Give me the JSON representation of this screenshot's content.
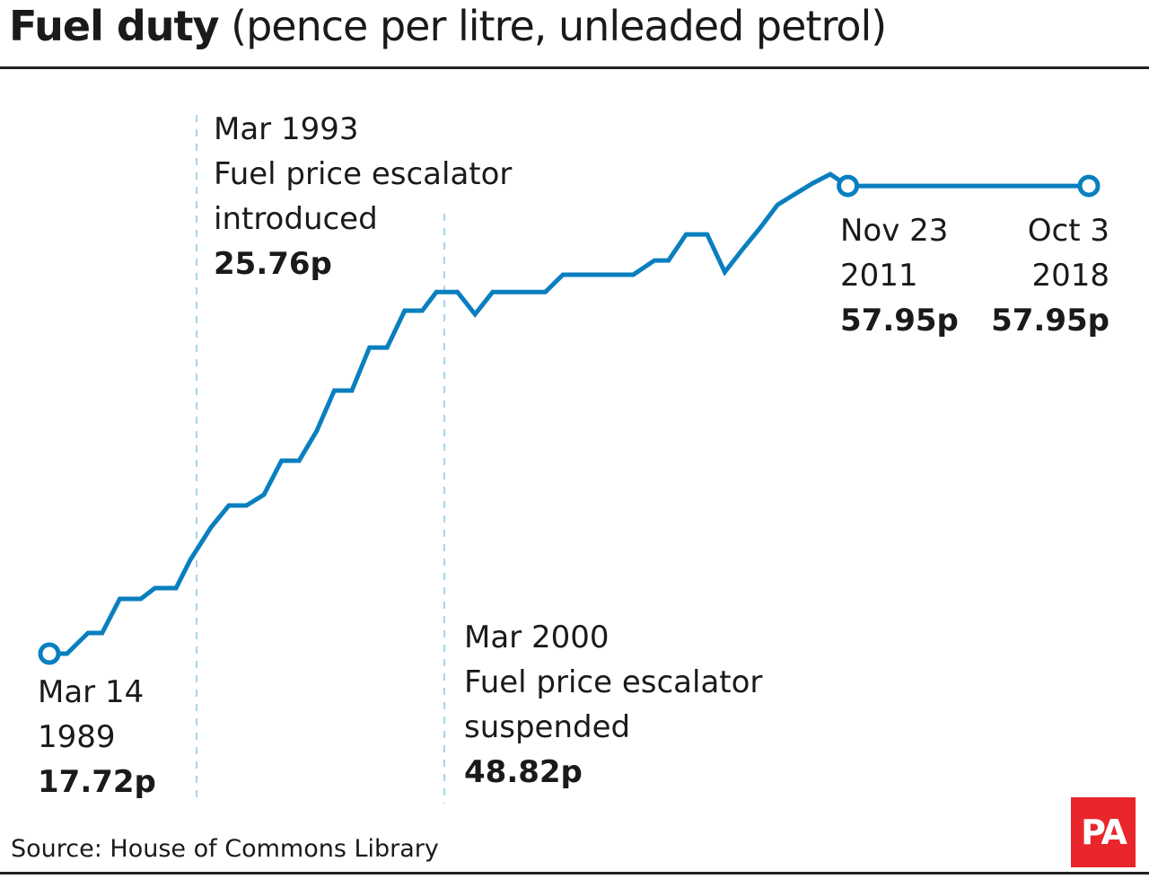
{
  "title": {
    "bold": "Fuel duty",
    "rest": "(pence per litre, unleaded petrol)"
  },
  "source": "Source: House of Commons Library",
  "logo": "PA",
  "colors": {
    "line": "#0a7fbf",
    "guide": "#a9d4ec",
    "logo": "#e8262b"
  },
  "chart_data": {
    "type": "line",
    "title": "Fuel duty (pence per litre, unleaded petrol)",
    "xlabel": "",
    "ylabel": "",
    "grid": false,
    "xlim": [
      1989.2,
      2018.75
    ],
    "ylim": [
      17.72,
      58.96
    ],
    "series": [
      {
        "x": [
          1989.2,
          1989.7,
          1990.3,
          1990.7,
          1991.2,
          1991.8,
          1992.2,
          1992.8,
          1993.2,
          1993.8,
          1994.3,
          1994.8,
          1995.3,
          1995.8,
          1996.3,
          1996.8,
          1997.3,
          1997.8,
          1998.3,
          1998.8,
          1999.3,
          1999.8,
          2000.2,
          2000.8,
          2001.3,
          2001.8,
          2003.3,
          2003.8,
          2005.8,
          2006.4,
          2006.8,
          2007.3,
          2007.9,
          2008.4,
          2008.9,
          2009.4,
          2009.9,
          2010.4,
          2010.9,
          2011.4,
          2011.9,
          2018.75
        ],
        "values": [
          17.72,
          17.72,
          19.5,
          19.5,
          22.43,
          22.43,
          23.36,
          23.36,
          25.76,
          28.61,
          30.46,
          30.46,
          31.39,
          34.32,
          34.32,
          36.87,
          40.35,
          40.35,
          44.05,
          44.05,
          47.22,
          47.22,
          48.82,
          48.82,
          46.91,
          48.82,
          48.82,
          50.31,
          50.31,
          51.54,
          51.54,
          53.78,
          53.78,
          50.54,
          52.47,
          54.32,
          56.33,
          57.26,
          58.18,
          58.96,
          57.95,
          57.95
        ]
      }
    ],
    "annotations": [
      {
        "date": "Mar 14",
        "year": "1989",
        "event": "",
        "value": "17.72p"
      },
      {
        "date": "Mar 1993",
        "event_line1": "Fuel price escalator",
        "event_line2": "introduced",
        "value": "25.76p"
      },
      {
        "date": "Mar 2000",
        "event_line1": "Fuel price escalator",
        "event_line2": "suspended",
        "value": "48.82p"
      },
      {
        "date": "Nov 23",
        "year": "2011",
        "value": "57.95p"
      },
      {
        "date": "Oct 3",
        "year": "2018",
        "value": "57.95p"
      }
    ]
  }
}
